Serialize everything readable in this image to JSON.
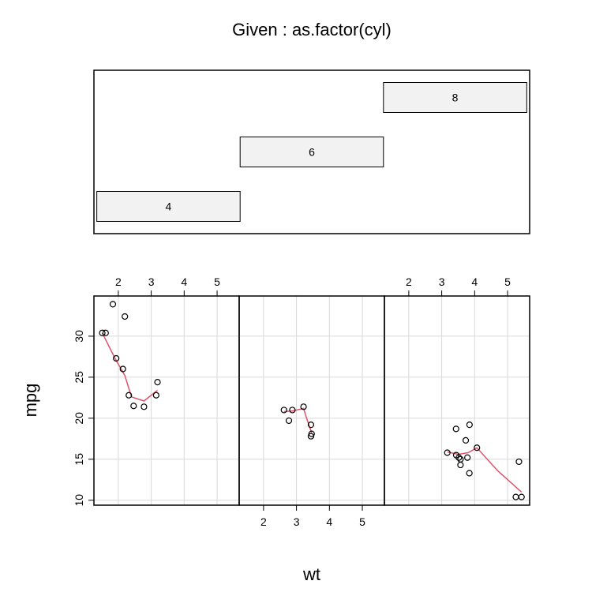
{
  "chart_data": {
    "type": "scatter",
    "title": "Given : as.factor(cyl)",
    "xlabel": "wt",
    "ylabel": "mpg",
    "xlim": [
      1.26,
      5.67
    ],
    "ylim": [
      9.4,
      34.9
    ],
    "x_ticks": [
      2,
      3,
      4,
      5
    ],
    "y_ticks": [
      10,
      15,
      20,
      25,
      30
    ],
    "x_tick_labels": [
      "2",
      "3",
      "4",
      "5"
    ],
    "y_tick_labels": [
      "10",
      "15",
      "20",
      "25",
      "30"
    ],
    "grid": true,
    "smoother_color": "#DF536B",
    "given_levels": [
      {
        "label": "4",
        "range": [
          3.5,
          5.5
        ]
      },
      {
        "label": "6",
        "range": [
          5.5,
          7.5
        ]
      },
      {
        "label": "8",
        "range": [
          7.5,
          9.5
        ]
      }
    ],
    "given_lim": [
      3.46,
      9.54
    ],
    "panels": [
      {
        "level": "4",
        "points": [
          {
            "x": 1.513,
            "y": 30.4
          },
          {
            "x": 1.615,
            "y": 30.4
          },
          {
            "x": 1.835,
            "y": 33.9
          },
          {
            "x": 1.935,
            "y": 27.3
          },
          {
            "x": 2.14,
            "y": 26.0
          },
          {
            "x": 2.2,
            "y": 32.4
          },
          {
            "x": 2.32,
            "y": 22.8
          },
          {
            "x": 2.465,
            "y": 21.5
          },
          {
            "x": 2.78,
            "y": 21.4
          },
          {
            "x": 3.15,
            "y": 22.8
          },
          {
            "x": 3.19,
            "y": 24.4
          }
        ],
        "smooth": [
          {
            "x": 1.513,
            "y": 30.4
          },
          {
            "x": 1.9,
            "y": 27.3
          },
          {
            "x": 2.2,
            "y": 25.2
          },
          {
            "x": 2.4,
            "y": 22.6
          },
          {
            "x": 2.78,
            "y": 22.1
          },
          {
            "x": 3.19,
            "y": 23.4
          }
        ]
      },
      {
        "level": "6",
        "points": [
          {
            "x": 2.62,
            "y": 21.0
          },
          {
            "x": 2.77,
            "y": 19.7
          },
          {
            "x": 2.875,
            "y": 21.0
          },
          {
            "x": 3.215,
            "y": 21.4
          },
          {
            "x": 3.44,
            "y": 19.2
          },
          {
            "x": 3.44,
            "y": 17.8
          },
          {
            "x": 3.46,
            "y": 18.1
          }
        ],
        "smooth": [
          {
            "x": 2.62,
            "y": 20.8
          },
          {
            "x": 2.9,
            "y": 20.9
          },
          {
            "x": 3.215,
            "y": 21.2
          },
          {
            "x": 3.3,
            "y": 20.1
          },
          {
            "x": 3.46,
            "y": 18.2
          }
        ]
      },
      {
        "level": "8",
        "points": [
          {
            "x": 3.17,
            "y": 15.8
          },
          {
            "x": 3.435,
            "y": 18.7
          },
          {
            "x": 3.52,
            "y": 15.2
          },
          {
            "x": 3.44,
            "y": 15.5
          },
          {
            "x": 3.57,
            "y": 14.3
          },
          {
            "x": 3.57,
            "y": 15.0
          },
          {
            "x": 3.73,
            "y": 17.3
          },
          {
            "x": 3.78,
            "y": 15.2
          },
          {
            "x": 3.84,
            "y": 13.3
          },
          {
            "x": 3.845,
            "y": 19.2
          },
          {
            "x": 4.07,
            "y": 16.4
          },
          {
            "x": 5.25,
            "y": 10.4
          },
          {
            "x": 5.345,
            "y": 14.7
          },
          {
            "x": 5.424,
            "y": 10.4
          }
        ],
        "smooth": [
          {
            "x": 3.17,
            "y": 15.9
          },
          {
            "x": 3.5,
            "y": 15.6
          },
          {
            "x": 3.8,
            "y": 15.8
          },
          {
            "x": 4.07,
            "y": 16.4
          },
          {
            "x": 4.7,
            "y": 13.6
          },
          {
            "x": 5.424,
            "y": 11.0
          }
        ]
      }
    ]
  }
}
